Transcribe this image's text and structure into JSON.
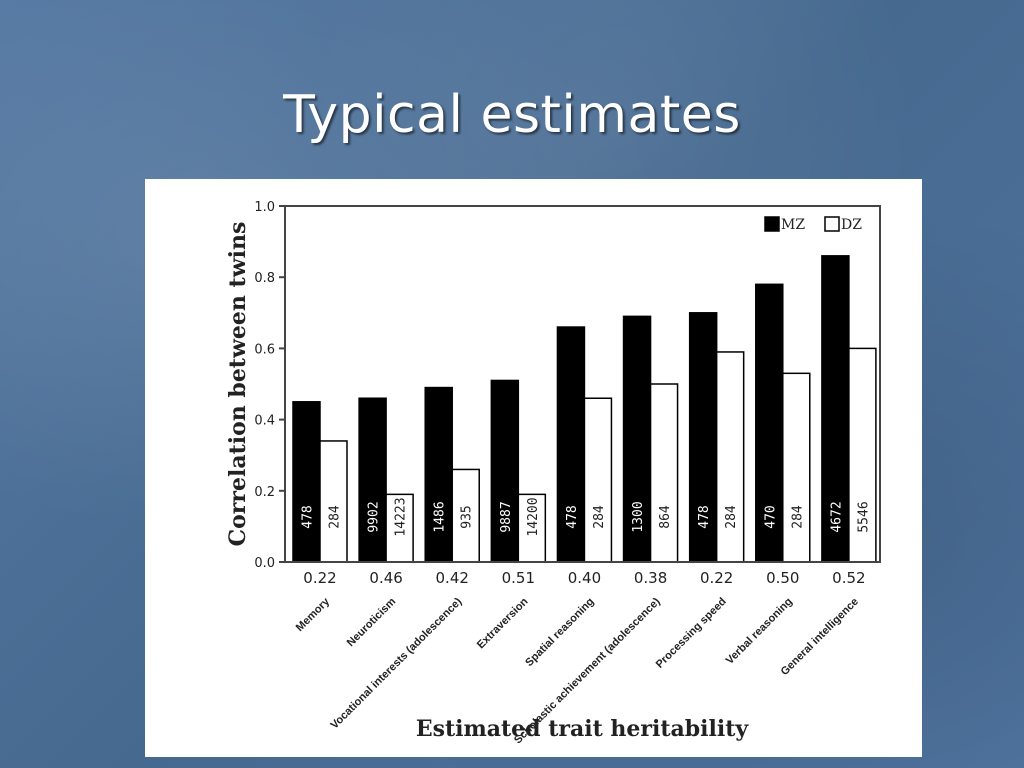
{
  "slide": {
    "title": "Typical estimates"
  },
  "chart_data": {
    "type": "bar",
    "ylabel": "Correlation between twins",
    "xlabel": "Estimated trait heritability",
    "ylim": [
      0,
      1.0
    ],
    "yticks": [
      "0.0",
      "0.2",
      "0.4",
      "0.6",
      "0.8",
      "1.0"
    ],
    "categories": [
      "Memory",
      "Neuroticism",
      "Vocational interests (adolescence)",
      "Extraversion",
      "Spatial reasoning",
      "Scholastic achievement (adolescence)",
      "Processing speed",
      "Verbal reasoning",
      "General intelligence"
    ],
    "heritability": [
      "0.22",
      "0.46",
      "0.42",
      "0.51",
      "0.40",
      "0.38",
      "0.22",
      "0.50",
      "0.52"
    ],
    "legend_position": "top-right",
    "series": [
      {
        "name": "MZ",
        "color": "#000000",
        "values": [
          0.45,
          0.46,
          0.49,
          0.51,
          0.66,
          0.69,
          0.7,
          0.78,
          0.86
        ],
        "labels": [
          "478",
          "9902",
          "1486",
          "9887",
          "478",
          "1300",
          "478",
          "470",
          "4672"
        ]
      },
      {
        "name": "DZ",
        "color": "#ffffff",
        "values": [
          0.34,
          0.19,
          0.26,
          0.19,
          0.46,
          0.5,
          0.59,
          0.53,
          0.6
        ],
        "labels": [
          "284",
          "14223",
          "935",
          "14200",
          "284",
          "864",
          "284",
          "284",
          "5546"
        ]
      }
    ]
  }
}
